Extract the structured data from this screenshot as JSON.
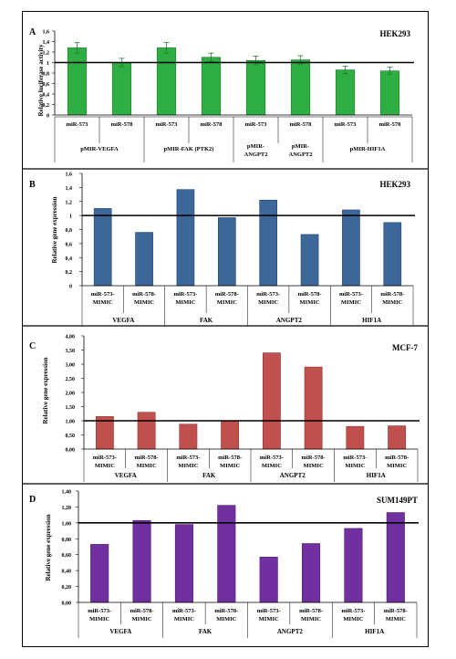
{
  "chart_data": [
    {
      "type": "bar",
      "panel_label": "A",
      "title": "HEK293",
      "ylabel": "Relative luciferase activity",
      "ylim": [
        0,
        1.6
      ],
      "yticks": [
        "0",
        "0,2",
        "0,4",
        "0,6",
        "0,8",
        "1",
        "1,2",
        "1,4",
        "1,6"
      ],
      "reference_line": 1,
      "bar_color": "#2fae44",
      "bar_edge": "#1e7a2e",
      "error_bars": true,
      "categories": [
        "miR-573",
        "miR-578",
        "miR-573",
        "miR-578",
        "miR-573",
        "miR-578",
        "miR-573",
        "miR-578"
      ],
      "values": [
        1.28,
        1.0,
        1.28,
        1.1,
        1.04,
        1.05,
        0.86,
        0.84
      ],
      "errors": [
        0.1,
        0.08,
        0.1,
        0.08,
        0.08,
        0.08,
        0.07,
        0.07
      ],
      "groups": [
        "pMIR-VEGFA",
        "pMIR-FAK (PTK2)",
        "pMIR-ANGPT2",
        "pMIR-ANGPT2",
        "pMIR-HIF1A"
      ]
    },
    {
      "type": "bar",
      "panel_label": "B",
      "title": "HEK293",
      "ylabel": "Relative gene expression",
      "ylim": [
        0,
        1.6
      ],
      "yticks": [
        "0",
        "0,2",
        "0,4",
        "0,6",
        "0,8",
        "1",
        "1,2",
        "1,4",
        "1,6"
      ],
      "reference_line": 1,
      "bar_color": "#3d6699",
      "bar_edge": "#22446e",
      "categories": [
        "miR-573-MIMIC",
        "miR-578-MIMIC",
        "miR-573-MIMIC",
        "miR-578-MIMIC",
        "miR-573-MIMIC",
        "miR-578-MIMIC",
        "miR-573-MIMIC",
        "miR-578-MIMIC"
      ],
      "values": [
        1.1,
        0.76,
        1.37,
        0.97,
        1.22,
        0.73,
        1.08,
        0.9
      ],
      "groups": [
        "VEGFA",
        "FAK",
        "ANGPT2",
        "HIF1A"
      ]
    },
    {
      "type": "bar",
      "panel_label": "C",
      "title": "MCF-7",
      "ylabel": "Relative gene expression",
      "ylim": [
        0,
        4
      ],
      "yticks": [
        "0,00",
        "0,50",
        "1,00",
        "1,50",
        "2,00",
        "2,50",
        "3,00",
        "3,50",
        "4,00"
      ],
      "reference_line": 1,
      "bar_color": "#c0504d",
      "bar_edge": "#8f3330",
      "categories": [
        "miR-573-MIMIC",
        "miR-578-MIMIC",
        "miR-573-MIMIC",
        "miR-578-MIMIC",
        "miR-573-MIMIC",
        "miR-578-MIMIC",
        "miR-573-MIMIC",
        "miR-578-MIMIC"
      ],
      "values": [
        1.15,
        1.3,
        0.88,
        1.0,
        3.4,
        2.9,
        0.8,
        0.82
      ],
      "groups": [
        "VEGFA",
        "FAK",
        "ANGPT2",
        "HIF1A"
      ]
    },
    {
      "type": "bar",
      "panel_label": "D",
      "title": "SUM149PT",
      "ylabel": "Relative gene expression",
      "ylim": [
        0,
        1.4
      ],
      "yticks": [
        "0,00",
        "0,20",
        "0,40",
        "0,60",
        "0,80",
        "1,00",
        "1,20",
        "1,40"
      ],
      "reference_line": 1,
      "bar_color": "#7030a0",
      "bar_edge": "#4a1d6e",
      "categories": [
        "miR-573-MIMIC",
        "miR-578-MIMIC",
        "miR-573-MIMIC",
        "miR-578-MIMIC",
        "miR-573-MIMIC",
        "miR-578-MIMIC",
        "miR-573-MIMIC",
        "miR-578-MIMIC"
      ],
      "values": [
        0.73,
        1.03,
        0.98,
        1.22,
        0.57,
        0.74,
        0.93,
        1.13
      ],
      "groups": [
        "VEGFA",
        "FAK",
        "ANGPT2",
        "HIF1A"
      ]
    }
  ]
}
